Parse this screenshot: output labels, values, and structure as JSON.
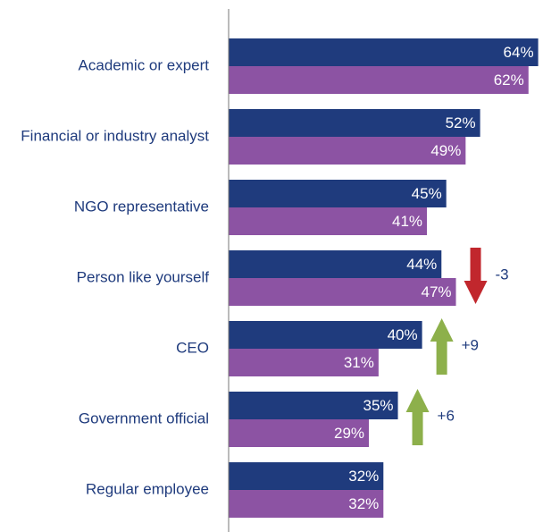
{
  "chart_data": {
    "type": "bar",
    "orientation": "horizontal",
    "categories": [
      "Academic or expert",
      "Financial or industry analyst",
      "NGO representative",
      "Person like yourself",
      "CEO",
      "Government official",
      "Regular employee"
    ],
    "series": [
      {
        "color": "#1f3b7d",
        "values": [
          64,
          52,
          45,
          44,
          40,
          35,
          32
        ],
        "value_labels": [
          "64%",
          "52%",
          "45%",
          "44%",
          "40%",
          "35%",
          "32%"
        ]
      },
      {
        "color": "#8c53a3",
        "values": [
          62,
          49,
          41,
          47,
          31,
          29,
          32
        ],
        "value_labels": [
          "62%",
          "49%",
          "41%",
          "47%",
          "31%",
          "29%",
          "32%"
        ]
      }
    ],
    "xlim": [
      0,
      65
    ],
    "annotations": [
      {
        "text": "-3",
        "category": 3,
        "direction": "down",
        "color": "#c1272d"
      },
      {
        "text": "+9",
        "category": 4,
        "direction": "up",
        "color": "#8db04b"
      },
      {
        "text": "+6",
        "category": 5,
        "direction": "up",
        "color": "#8db04b"
      }
    ]
  }
}
